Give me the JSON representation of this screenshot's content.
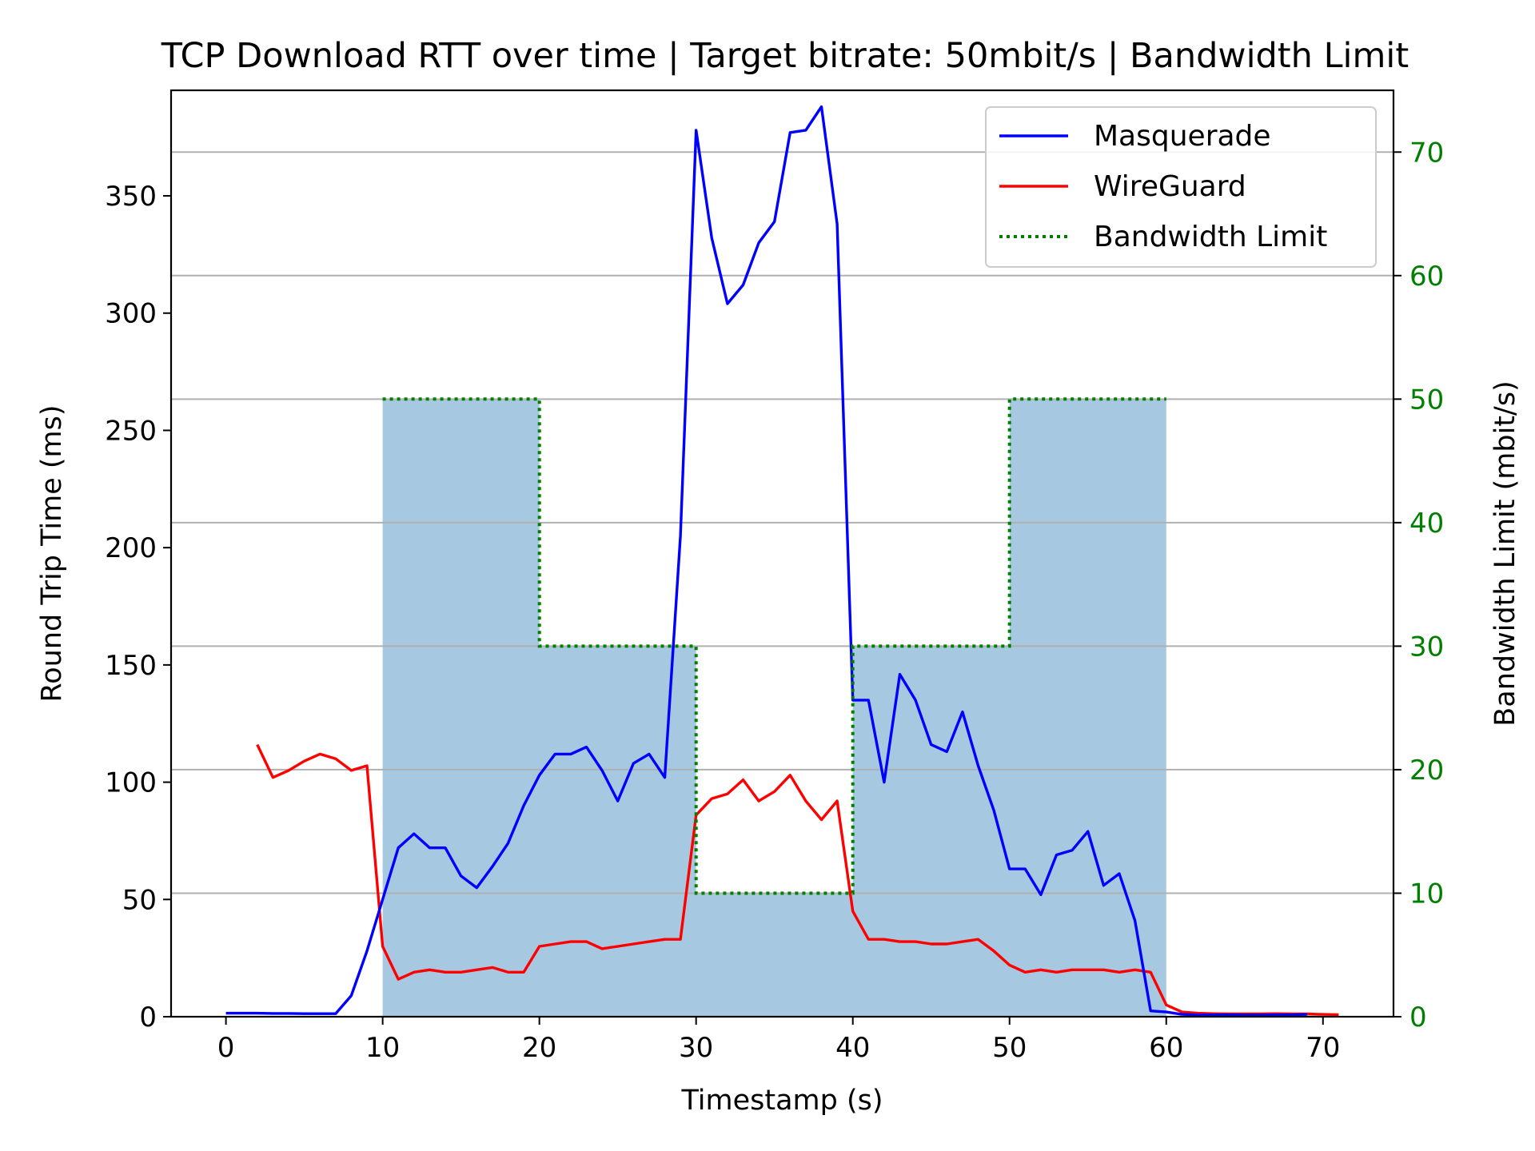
{
  "chart_data": {
    "type": "line",
    "title": "TCP Download RTT over time | Target bitrate: 50mbit/s | Bandwidth Limit",
    "xlabel": "Timestamp (s)",
    "ylabel": "Round Trip Time (ms)",
    "y2label": "Bandwidth Limit (mbit/s)",
    "xlim": [
      -3.5,
      74.5
    ],
    "ylim": [
      0,
      395
    ],
    "y2lim": [
      0,
      75
    ],
    "xticks": [
      0,
      10,
      20,
      30,
      40,
      50,
      60,
      70
    ],
    "yticks": [
      0,
      50,
      100,
      150,
      200,
      250,
      300,
      350
    ],
    "y2ticks": [
      0,
      10,
      20,
      30,
      40,
      50,
      60,
      70
    ],
    "grid": "horizontal, at right-axis ticks",
    "legend_position": "top-right",
    "colors": {
      "masquerade": "#0000ff",
      "wireguard": "#ff0000",
      "overlap": "#a93a4a",
      "bandwidth": "#007f00",
      "fill": "#a6c8e0",
      "grid": "#b0b0b0"
    },
    "series": [
      {
        "name": "Masquerade",
        "axis": "left",
        "style": "solid",
        "color": "#0000ff",
        "x": [
          0,
          1,
          2,
          3,
          4,
          5,
          6,
          7,
          8,
          9,
          10,
          11,
          12,
          13,
          14,
          15,
          16,
          17,
          18,
          19,
          20,
          21,
          22,
          23,
          24,
          25,
          26,
          27,
          28,
          29,
          30,
          31,
          32,
          33,
          34,
          35,
          36,
          37,
          38,
          39,
          40,
          41,
          42,
          43,
          44,
          45,
          46,
          47,
          48,
          49,
          50,
          51,
          52,
          53,
          54,
          55,
          56,
          57,
          58,
          59,
          60,
          61,
          62,
          63,
          64,
          65,
          66,
          67,
          68,
          69
        ],
        "values": [
          1.5,
          1.5,
          1.5,
          1.4,
          1.4,
          1.3,
          1.3,
          1.3,
          9,
          28,
          50,
          72,
          78,
          72,
          72,
          60,
          55,
          64,
          74,
          90,
          103,
          112,
          112,
          115,
          105,
          92,
          108,
          112,
          102,
          205,
          378,
          332,
          304,
          312,
          330,
          339,
          377,
          378,
          388,
          338,
          135,
          135,
          100,
          146,
          135,
          116,
          113,
          130,
          107,
          88,
          63,
          63,
          52,
          69,
          71,
          79,
          56,
          61,
          41,
          2.5,
          2,
          1,
          0.8,
          0.8,
          0.8,
          0.7,
          0.7,
          0.8,
          0.8,
          1.0
        ]
      },
      {
        "name": "WireGuard",
        "axis": "left",
        "style": "solid",
        "color": "#ff0000",
        "x": [
          2,
          3,
          4,
          5,
          6,
          7,
          8,
          9,
          10,
          11,
          12,
          13,
          14,
          15,
          16,
          17,
          18,
          19,
          20,
          21,
          22,
          23,
          24,
          25,
          26,
          27,
          28,
          29,
          30,
          31,
          32,
          33,
          34,
          35,
          36,
          37,
          38,
          39,
          40,
          41,
          42,
          43,
          44,
          45,
          46,
          47,
          48,
          49,
          50,
          51,
          52,
          53,
          54,
          55,
          56,
          57,
          58,
          59,
          60,
          61,
          62,
          63,
          64,
          65,
          66,
          67,
          68,
          69,
          70,
          71
        ],
        "values": [
          116,
          102,
          105,
          109,
          112,
          110,
          105,
          107,
          30,
          16,
          19,
          20,
          19,
          19,
          20,
          21,
          19,
          19,
          30,
          31,
          32,
          32,
          29,
          30,
          31,
          32,
          33,
          33,
          86,
          93,
          95,
          101,
          92,
          96,
          103,
          92,
          84,
          92,
          45,
          33,
          33,
          32,
          32,
          31,
          31,
          32,
          33,
          28,
          22,
          19,
          20,
          19,
          20,
          20,
          20,
          19,
          20,
          19,
          5,
          2,
          1.5,
          1.3,
          1.2,
          1.2,
          1.2,
          1.3,
          1.2,
          1.2,
          1.0,
          0.9
        ]
      },
      {
        "name": "Bandwidth Limit",
        "axis": "right",
        "style": "dotted",
        "color": "#007f00",
        "x": [
          10,
          20,
          20,
          30,
          30,
          40,
          40,
          50,
          50,
          60
        ],
        "values": [
          50,
          50,
          30,
          30,
          10,
          10,
          30,
          30,
          50,
          50
        ]
      }
    ]
  }
}
